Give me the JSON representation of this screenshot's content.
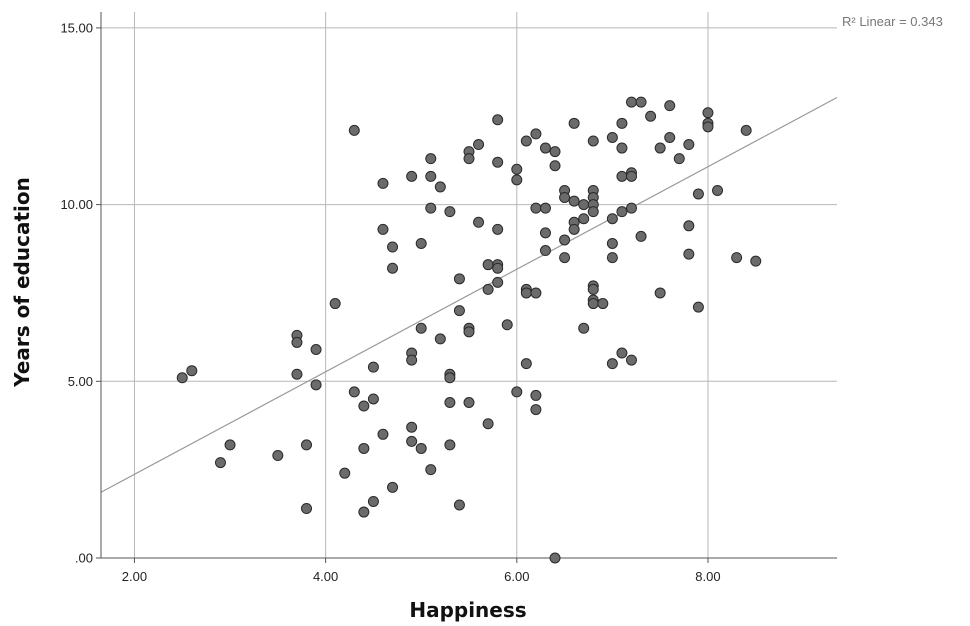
{
  "chart_data": {
    "type": "scatter",
    "xlabel": "Happiness",
    "ylabel": "Years of education",
    "xlim": [
      1.65,
      9.35
    ],
    "ylim": [
      0,
      15.45
    ],
    "x_ticks": [
      2,
      4,
      6,
      8
    ],
    "x_tick_labels": [
      "2.00",
      "4.00",
      "6.00",
      "8.00"
    ],
    "y_ticks": [
      0,
      5,
      10,
      15
    ],
    "y_tick_labels": [
      ".00",
      "5.00",
      "10.00",
      "15.00"
    ],
    "grid": true,
    "fit_line": {
      "type": "linear",
      "label": "R² Linear = 0.343",
      "start": [
        1.65,
        1.86
      ],
      "end": [
        9.35,
        13.03
      ]
    },
    "colors": {
      "point_fill": "#6b6b6b",
      "point_stroke": "#2a2a2a",
      "grid": "#b8b8b8",
      "fit_line": "#9a9a9a",
      "axis": "#555555"
    },
    "points": [
      [
        2.5,
        5.1
      ],
      [
        2.6,
        5.3
      ],
      [
        2.9,
        2.7
      ],
      [
        3.0,
        3.2
      ],
      [
        3.5,
        2.9
      ],
      [
        3.7,
        6.3
      ],
      [
        3.7,
        6.1
      ],
      [
        3.7,
        5.2
      ],
      [
        3.8,
        3.2
      ],
      [
        3.8,
        1.4
      ],
      [
        3.9,
        5.9
      ],
      [
        3.9,
        4.9
      ],
      [
        4.1,
        7.2
      ],
      [
        4.2,
        2.4
      ],
      [
        4.3,
        12.1
      ],
      [
        4.3,
        4.7
      ],
      [
        4.4,
        4.3
      ],
      [
        4.4,
        3.1
      ],
      [
        4.4,
        1.3
      ],
      [
        4.5,
        5.4
      ],
      [
        4.5,
        4.5
      ],
      [
        4.5,
        1.6
      ],
      [
        4.6,
        10.6
      ],
      [
        4.6,
        9.3
      ],
      [
        4.6,
        3.5
      ],
      [
        4.7,
        8.8
      ],
      [
        4.7,
        8.2
      ],
      [
        4.7,
        2.0
      ],
      [
        4.9,
        10.8
      ],
      [
        4.9,
        5.8
      ],
      [
        4.9,
        5.6
      ],
      [
        4.9,
        3.7
      ],
      [
        4.9,
        3.3
      ],
      [
        5.0,
        8.9
      ],
      [
        5.0,
        6.5
      ],
      [
        5.0,
        3.1
      ],
      [
        5.1,
        11.3
      ],
      [
        5.1,
        10.8
      ],
      [
        5.1,
        9.9
      ],
      [
        5.1,
        2.5
      ],
      [
        5.2,
        10.5
      ],
      [
        5.2,
        6.2
      ],
      [
        5.3,
        9.8
      ],
      [
        5.3,
        5.2
      ],
      [
        5.3,
        5.1
      ],
      [
        5.3,
        4.4
      ],
      [
        5.3,
        3.2
      ],
      [
        5.4,
        7.9
      ],
      [
        5.4,
        7.0
      ],
      [
        5.4,
        1.5
      ],
      [
        5.5,
        11.5
      ],
      [
        5.5,
        11.3
      ],
      [
        5.5,
        6.5
      ],
      [
        5.5,
        6.4
      ],
      [
        5.5,
        4.4
      ],
      [
        5.6,
        11.7
      ],
      [
        5.6,
        9.5
      ],
      [
        5.7,
        8.3
      ],
      [
        5.7,
        7.6
      ],
      [
        5.7,
        3.8
      ],
      [
        5.8,
        12.4
      ],
      [
        5.8,
        11.2
      ],
      [
        5.8,
        9.3
      ],
      [
        5.8,
        8.3
      ],
      [
        5.8,
        8.2
      ],
      [
        5.8,
        7.8
      ],
      [
        5.9,
        6.6
      ],
      [
        6.0,
        11.0
      ],
      [
        6.0,
        10.7
      ],
      [
        6.0,
        4.7
      ],
      [
        6.1,
        11.8
      ],
      [
        6.1,
        7.6
      ],
      [
        6.1,
        7.5
      ],
      [
        6.1,
        5.5
      ],
      [
        6.2,
        12.0
      ],
      [
        6.2,
        9.9
      ],
      [
        6.2,
        7.5
      ],
      [
        6.2,
        4.6
      ],
      [
        6.2,
        4.2
      ],
      [
        6.3,
        11.6
      ],
      [
        6.3,
        9.9
      ],
      [
        6.3,
        9.2
      ],
      [
        6.3,
        8.7
      ],
      [
        6.4,
        11.5
      ],
      [
        6.4,
        11.1
      ],
      [
        6.4,
        0.0
      ],
      [
        6.5,
        10.4
      ],
      [
        6.5,
        10.2
      ],
      [
        6.5,
        9.0
      ],
      [
        6.5,
        8.5
      ],
      [
        6.6,
        12.3
      ],
      [
        6.6,
        10.1
      ],
      [
        6.6,
        9.5
      ],
      [
        6.6,
        9.3
      ],
      [
        6.7,
        10.0
      ],
      [
        6.7,
        9.6
      ],
      [
        6.7,
        6.5
      ],
      [
        6.8,
        11.8
      ],
      [
        6.8,
        10.4
      ],
      [
        6.8,
        10.2
      ],
      [
        6.8,
        10.0
      ],
      [
        6.8,
        9.8
      ],
      [
        6.8,
        7.7
      ],
      [
        6.8,
        7.6
      ],
      [
        6.8,
        7.3
      ],
      [
        6.8,
        7.2
      ],
      [
        6.9,
        7.2
      ],
      [
        7.0,
        11.9
      ],
      [
        7.0,
        9.6
      ],
      [
        7.0,
        8.9
      ],
      [
        7.0,
        8.5
      ],
      [
        7.0,
        5.5
      ],
      [
        7.1,
        12.3
      ],
      [
        7.1,
        11.6
      ],
      [
        7.1,
        10.8
      ],
      [
        7.1,
        9.8
      ],
      [
        7.1,
        5.8
      ],
      [
        7.2,
        12.9
      ],
      [
        7.2,
        10.9
      ],
      [
        7.2,
        10.8
      ],
      [
        7.2,
        9.9
      ],
      [
        7.2,
        5.6
      ],
      [
        7.3,
        12.9
      ],
      [
        7.3,
        9.1
      ],
      [
        7.4,
        12.5
      ],
      [
        7.5,
        11.6
      ],
      [
        7.5,
        7.5
      ],
      [
        7.6,
        12.8
      ],
      [
        7.6,
        11.9
      ],
      [
        7.7,
        11.3
      ],
      [
        7.8,
        11.7
      ],
      [
        7.8,
        9.4
      ],
      [
        7.8,
        8.6
      ],
      [
        7.9,
        10.3
      ],
      [
        7.9,
        7.1
      ],
      [
        8.0,
        12.6
      ],
      [
        8.0,
        12.3
      ],
      [
        8.0,
        12.2
      ],
      [
        8.1,
        10.4
      ],
      [
        8.3,
        8.5
      ],
      [
        8.4,
        12.1
      ],
      [
        8.5,
        8.4
      ]
    ]
  }
}
